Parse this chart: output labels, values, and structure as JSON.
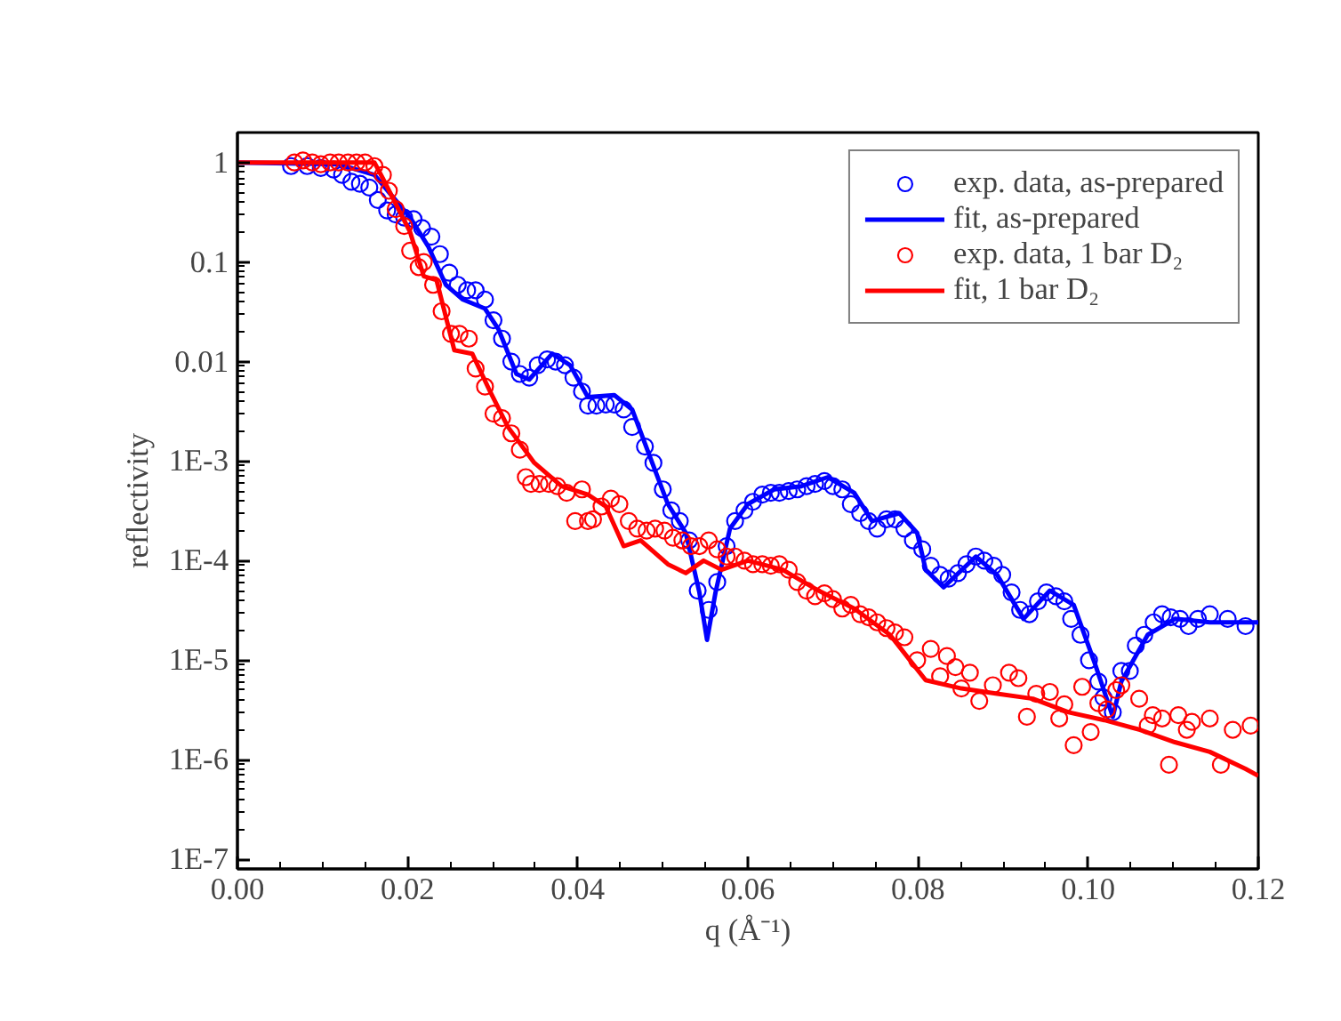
{
  "chart_data": {
    "type": "scatter",
    "xlabel": "q (Å⁻¹)",
    "ylabel": "reflectivity",
    "log": "y",
    "legend": "top right",
    "grid": false,
    "xlim": [
      0,
      0.12
    ],
    "xticks": [
      {
        "value": 0,
        "label": "0.00"
      },
      {
        "value": 0.02,
        "label": "0.02"
      },
      {
        "value": 0.04,
        "label": "0.04"
      },
      {
        "value": 0.06,
        "label": "0.06"
      },
      {
        "value": 0.08,
        "label": "0.08"
      },
      {
        "value": 0.1,
        "label": "0.10"
      },
      {
        "value": 0.12,
        "label": "0.12"
      }
    ],
    "ylim": [
      8e-08,
      2
    ],
    "yticks": [
      1,
      0.1,
      0.01,
      {
        "value": 0.001,
        "label": "1E-3"
      },
      {
        "value": 0.0001,
        "label": "1E-4"
      },
      {
        "value": 1e-05,
        "label": "1E-5"
      },
      {
        "value": 1e-06,
        "label": "1E-6"
      },
      {
        "value": 1e-07,
        "label": "1E-7"
      }
    ],
    "series": [
      {
        "name": "exp. data, as-prepared",
        "type": "scatter",
        "marker": "circle",
        "color": "#0000ff",
        "x": [
          0.0063,
          0.0082,
          0.0098,
          0.0113,
          0.0123,
          0.0134,
          0.0144,
          0.0155,
          0.0165,
          0.0176,
          0.0186,
          0.0196,
          0.0207,
          0.0217,
          0.0228,
          0.0238,
          0.0249,
          0.0259,
          0.027,
          0.028,
          0.0291,
          0.0301,
          0.0311,
          0.0322,
          0.0332,
          0.0343,
          0.0353,
          0.0364,
          0.0374,
          0.0385,
          0.0395,
          0.0405,
          0.0412,
          0.0422,
          0.0433,
          0.0443,
          0.0454,
          0.0464,
          0.0479,
          0.0489,
          0.05,
          0.051,
          0.052,
          0.0531,
          0.0541,
          0.0554,
          0.0564,
          0.0575,
          0.0585,
          0.0596,
          0.0606,
          0.0617,
          0.0627,
          0.0637,
          0.0648,
          0.0658,
          0.0669,
          0.0679,
          0.069,
          0.07,
          0.0711,
          0.0721,
          0.0732,
          0.0742,
          0.0752,
          0.0763,
          0.0773,
          0.0784,
          0.0794,
          0.0805,
          0.0815,
          0.0826,
          0.0836,
          0.0847,
          0.0857,
          0.0868,
          0.0878,
          0.0889,
          0.0899,
          0.091,
          0.092,
          0.0931,
          0.0941,
          0.0951,
          0.0962,
          0.0972,
          0.098,
          0.0991,
          0.1001,
          0.1012,
          0.1018,
          0.1029,
          0.1039,
          0.1049,
          0.1056,
          0.1066,
          0.1077,
          0.1087,
          0.1097,
          0.1108,
          0.1118,
          0.1129,
          0.1143,
          0.1164,
          0.1185
        ],
        "values": [
          0.92,
          0.92,
          0.88,
          0.85,
          0.75,
          0.64,
          0.61,
          0.56,
          0.42,
          0.33,
          0.3,
          0.28,
          0.27,
          0.22,
          0.18,
          0.12,
          0.078,
          0.059,
          0.052,
          0.052,
          0.042,
          0.026,
          0.017,
          0.01,
          0.0075,
          0.0069,
          0.0092,
          0.0105,
          0.01,
          0.0092,
          0.0069,
          0.005,
          0.0036,
          0.0036,
          0.0037,
          0.0037,
          0.0033,
          0.0022,
          0.0014,
          0.00096,
          0.00052,
          0.00032,
          0.00025,
          0.00016,
          5e-05,
          3.2e-05,
          6.1e-05,
          0.00014,
          0.00025,
          0.00032,
          0.00039,
          0.00046,
          0.00048,
          0.00048,
          0.0005,
          0.00052,
          0.00056,
          0.00059,
          0.00063,
          0.00056,
          0.00052,
          0.00037,
          0.0003,
          0.00025,
          0.00021,
          0.00026,
          0.00026,
          0.00021,
          0.00016,
          0.00013,
          8.9e-05,
          7.2e-05,
          6.6e-05,
          7.5e-05,
          9.2e-05,
          0.00011,
          0.0001,
          8.9e-05,
          7.2e-05,
          4.8e-05,
          3.2e-05,
          2.9e-05,
          3.9e-05,
          4.8e-05,
          4.4e-05,
          3.9e-05,
          2.6e-05,
          1.8e-05,
          1e-05,
          6.1e-06,
          4.2e-06,
          3e-06,
          7.8e-06,
          7.8e-06,
          1.4e-05,
          1.8e-05,
          2.4e-05,
          2.9e-05,
          2.7e-05,
          2.6e-05,
          2.2e-05,
          2.6e-05,
          2.9e-05,
          2.6e-05,
          2.2e-05
        ]
      },
      {
        "name": "fit, as-prepared",
        "type": "line",
        "line_style": "solid",
        "color": "#0000ff",
        "x": [
          0,
          0.0119,
          0.0161,
          0.0203,
          0.0224,
          0.0245,
          0.0265,
          0.0291,
          0.0307,
          0.0328,
          0.0343,
          0.037,
          0.0391,
          0.0412,
          0.0443,
          0.0464,
          0.0485,
          0.0506,
          0.0527,
          0.0543,
          0.0552,
          0.0562,
          0.0579,
          0.06,
          0.0631,
          0.0663,
          0.0694,
          0.0725,
          0.0746,
          0.0778,
          0.0799,
          0.0809,
          0.083,
          0.0868,
          0.0893,
          0.0924,
          0.0955,
          0.0983,
          0.1008,
          0.1029,
          0.1039,
          0.107,
          0.1102,
          0.1143,
          0.12
        ],
        "values": [
          1,
          0.96,
          0.75,
          0.28,
          0.145,
          0.059,
          0.042,
          0.034,
          0.021,
          0.0075,
          0.0066,
          0.012,
          0.0092,
          0.0044,
          0.0046,
          0.0033,
          0.0011,
          0.00037,
          0.00019,
          4.8e-05,
          1.6e-05,
          4.8e-05,
          0.00021,
          0.00037,
          0.00052,
          0.00056,
          0.00069,
          0.00048,
          0.00025,
          0.0003,
          0.00019,
          8.1e-05,
          5.4e-05,
          0.00011,
          7.2e-05,
          2.6e-05,
          5e-05,
          3.6e-05,
          9.2e-06,
          2.7e-06,
          6.1e-06,
          1.8e-05,
          2.6e-05,
          2.4e-05,
          2.4e-05
        ]
      },
      {
        "name": "exp. data, 1 bar D₂",
        "type": "scatter",
        "marker": "circle",
        "color": "#ff0000",
        "x": [
          0.0067,
          0.0077,
          0.0088,
          0.0098,
          0.0109,
          0.0119,
          0.013,
          0.014,
          0.015,
          0.0161,
          0.0171,
          0.0178,
          0.0186,
          0.0196,
          0.0203,
          0.0213,
          0.0219,
          0.023,
          0.024,
          0.0251,
          0.0261,
          0.0272,
          0.028,
          0.0291,
          0.0301,
          0.0311,
          0.0322,
          0.0332,
          0.0339,
          0.0345,
          0.0355,
          0.0366,
          0.0376,
          0.0387,
          0.0397,
          0.0405,
          0.0412,
          0.0418,
          0.0428,
          0.0439,
          0.0449,
          0.046,
          0.047,
          0.0481,
          0.0491,
          0.0502,
          0.0512,
          0.0523,
          0.0533,
          0.0543,
          0.0554,
          0.0564,
          0.0575,
          0.0585,
          0.0596,
          0.0606,
          0.0617,
          0.0627,
          0.0637,
          0.0648,
          0.0658,
          0.0669,
          0.0679,
          0.069,
          0.07,
          0.0711,
          0.0721,
          0.0732,
          0.0742,
          0.0752,
          0.0763,
          0.0773,
          0.0784,
          0.0799,
          0.0815,
          0.0826,
          0.0834,
          0.0844,
          0.0851,
          0.0861,
          0.0872,
          0.0888,
          0.0907,
          0.0918,
          0.0928,
          0.0939,
          0.0955,
          0.0966,
          0.0972,
          0.0983,
          0.0993,
          0.1003,
          0.1012,
          0.1022,
          0.1033,
          0.1039,
          0.106,
          0.107,
          0.1076,
          0.1087,
          0.1095,
          0.1106,
          0.1116,
          0.1122,
          0.1143,
          0.1156,
          0.117,
          0.1191
        ],
        "values": [
          1.0,
          1.05,
          1.0,
          0.96,
          1.0,
          1.0,
          1.0,
          1.0,
          1.0,
          0.92,
          0.75,
          0.52,
          0.34,
          0.23,
          0.13,
          0.089,
          0.1,
          0.059,
          0.032,
          0.019,
          0.019,
          0.017,
          0.0085,
          0.0056,
          0.003,
          0.0027,
          0.0019,
          0.0013,
          0.00069,
          0.00059,
          0.00059,
          0.00059,
          0.00056,
          0.00048,
          0.00025,
          0.00052,
          0.00025,
          0.00026,
          0.00035,
          0.00042,
          0.00037,
          0.00025,
          0.00021,
          0.0002,
          0.00021,
          0.0002,
          0.00017,
          0.00016,
          0.00014,
          0.00014,
          0.00016,
          0.00013,
          0.00011,
          0.00011,
          0.0001,
          9.2e-05,
          9.2e-05,
          8.9e-05,
          9.2e-05,
          8.1e-05,
          6.1e-05,
          5e-05,
          4.4e-05,
          4.7e-05,
          4.1e-05,
          3.3e-05,
          3.6e-05,
          2.9e-05,
          2.7e-05,
          2.4e-05,
          2.1e-05,
          1.9e-05,
          1.7e-05,
          1e-05,
          1.3e-05,
          6.9e-06,
          1.1e-05,
          8.5e-06,
          5.2e-06,
          7.5e-06,
          3.9e-06,
          5.6e-06,
          7.5e-06,
          6.6e-06,
          2.7e-06,
          4.6e-06,
          4.8e-06,
          2.6e-06,
          3.6e-06,
          1.4e-06,
          5.4e-06,
          1.9e-06,
          3.7e-06,
          3.2e-06,
          5e-06,
          5.6e-06,
          4.1e-06,
          2.2e-06,
          2.8e-06,
          2.6e-06,
          8.9e-07,
          2.8e-06,
          2e-06,
          2.4e-06,
          2.6e-06,
          8.9e-07,
          2e-06,
          2.2e-06
        ]
      },
      {
        "name": "fit, 1 bar D₂",
        "type": "line",
        "line_style": "solid",
        "color": "#ff0000",
        "x": [
          0,
          0.0161,
          0.0171,
          0.0203,
          0.0219,
          0.0234,
          0.0255,
          0.0276,
          0.0297,
          0.0318,
          0.0349,
          0.0381,
          0.0412,
          0.0433,
          0.0454,
          0.0474,
          0.0506,
          0.0527,
          0.0548,
          0.0569,
          0.06,
          0.0641,
          0.0683,
          0.0725,
          0.0767,
          0.0809,
          0.0851,
          0.0893,
          0.0935,
          0.0977,
          0.1019,
          0.1061,
          0.1102,
          0.1143,
          0.1185,
          0.12
        ],
        "values": [
          1,
          1,
          0.69,
          0.2,
          0.072,
          0.066,
          0.013,
          0.012,
          0.005,
          0.0022,
          0.00096,
          0.00056,
          0.00046,
          0.00035,
          0.00014,
          0.00016,
          9.2e-05,
          7.5e-05,
          0.0001,
          8.1e-05,
          0.0001,
          8.1e-05,
          5e-05,
          3.3e-05,
          1.8e-05,
          6.3e-06,
          5.2e-06,
          4.6e-06,
          4.1e-06,
          3e-06,
          2.5e-06,
          2e-06,
          1.5e-06,
          1.2e-06,
          8.1e-07,
          6.9e-07
        ]
      }
    ]
  }
}
